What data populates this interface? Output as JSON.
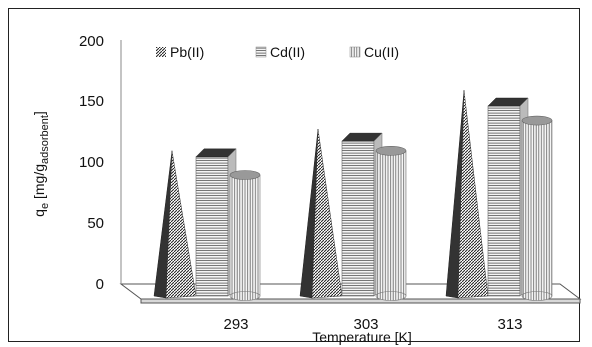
{
  "chart_data": {
    "type": "bar",
    "categories": [
      "293",
      "303",
      "313"
    ],
    "series": [
      {
        "name": "Pb(II)",
        "values": [
          120,
          138,
          170
        ]
      },
      {
        "name": "Cd(II)",
        "values": [
          115,
          128,
          157
        ]
      },
      {
        "name": "Cu(II)",
        "values": [
          100,
          120,
          145
        ]
      }
    ],
    "xlabel": "Temperature [K]",
    "ylabel_main": "q",
    "ylabel_sub_e": "e",
    "ylabel_unit": " [mg/g",
    "ylabel_sub_unit": "adsorbent",
    "ylabel_close": "]",
    "ylim": [
      0,
      200
    ],
    "yticks": [
      "0",
      "50",
      "100",
      "150",
      "200"
    ],
    "legend_position": "top",
    "grid": false
  }
}
